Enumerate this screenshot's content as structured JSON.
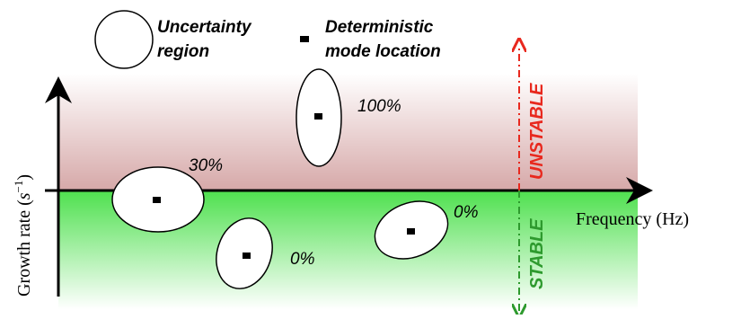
{
  "legend": {
    "uncertainty_label_line1": "Uncertainty",
    "uncertainty_label_line2": "region",
    "deterministic_label_line1": "Deterministic",
    "deterministic_label_line2": "mode location"
  },
  "axes": {
    "x_label": "Frequency (Hz)",
    "y_label_prefix": "Growth rate (",
    "y_label_var": "s",
    "y_label_exp": "−1",
    "y_label_suffix": ")"
  },
  "stability": {
    "unstable_label": "UNSTABLE",
    "stable_label": "STABLE",
    "unstable_color": "#e8281e",
    "stable_color": "#2e9a2e"
  },
  "regions": {
    "unstable_fill_top": "#ffffff",
    "unstable_fill_bottom": "#d6a8a8",
    "stable_fill_top": "#4ee04e",
    "stable_fill_bottom": "#ffffff"
  },
  "modes": [
    {
      "label": "30%"
    },
    {
      "label": "100%"
    },
    {
      "label": "0%"
    },
    {
      "label": "0%"
    }
  ]
}
